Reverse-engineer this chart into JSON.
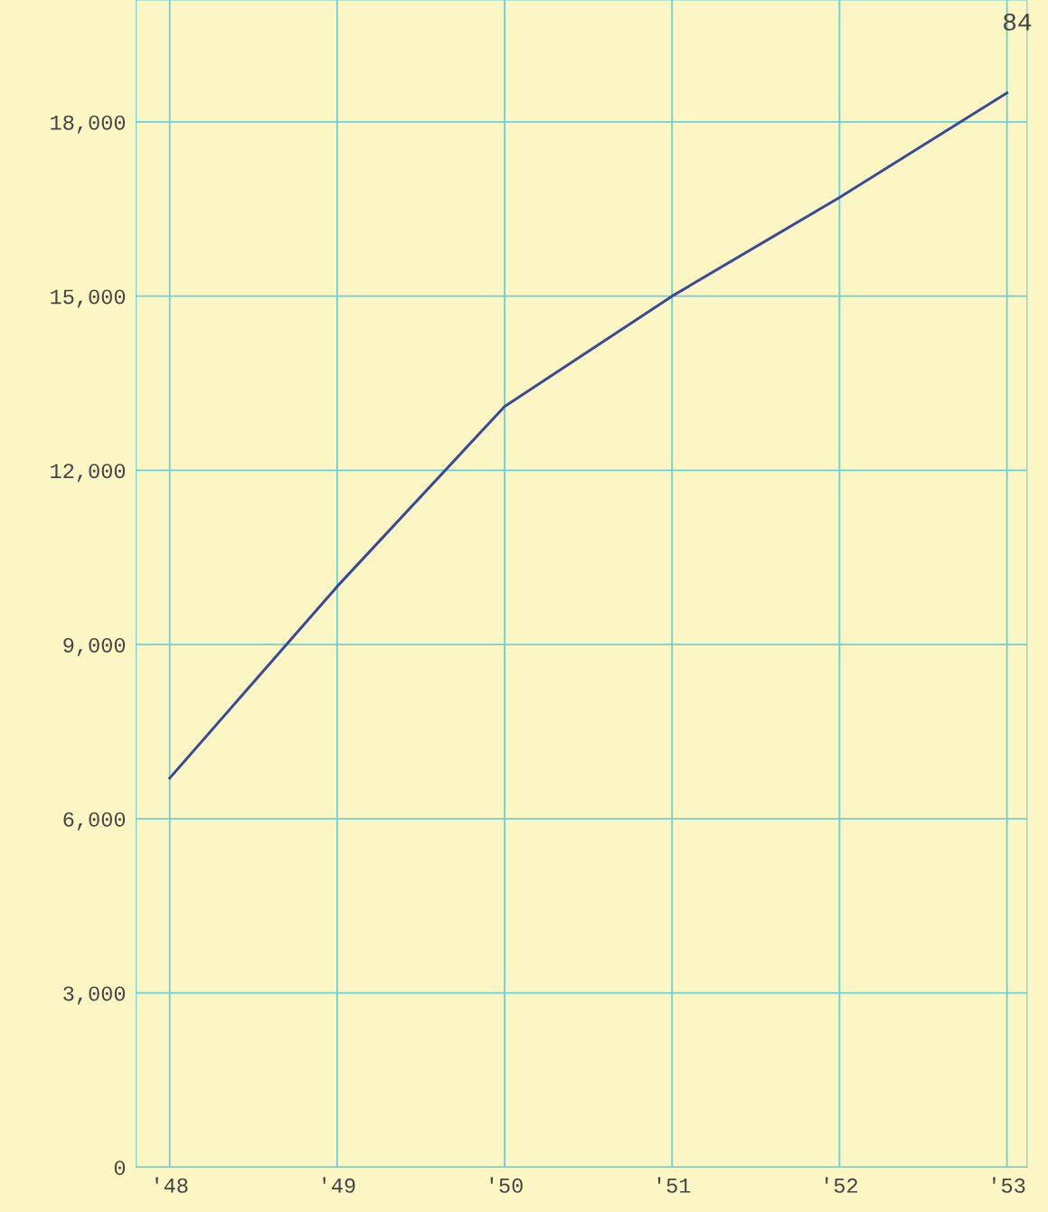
{
  "chart_data": {
    "type": "line",
    "categories": [
      "'48",
      "'49",
      "'50",
      "'51",
      "'52",
      "'53"
    ],
    "series": [
      {
        "color": "#3a4a9a",
        "values": [
          6700,
          10000,
          13100,
          15000,
          16700,
          18500
        ]
      }
    ],
    "ylim": [
      0,
      20100
    ],
    "yticks": [
      {
        "value": 0,
        "label": "0"
      },
      {
        "value": 3000,
        "label": "3,000"
      },
      {
        "value": 6000,
        "label": "6,000"
      },
      {
        "value": 9000,
        "label": "9,000"
      },
      {
        "value": 12000,
        "label": "12,000"
      },
      {
        "value": 15000,
        "label": "15,000"
      },
      {
        "value": 18000,
        "label": "18,000"
      }
    ],
    "grid": true,
    "marker": "none",
    "line_style": "solid",
    "legend": false,
    "annotations": [
      "84"
    ]
  }
}
